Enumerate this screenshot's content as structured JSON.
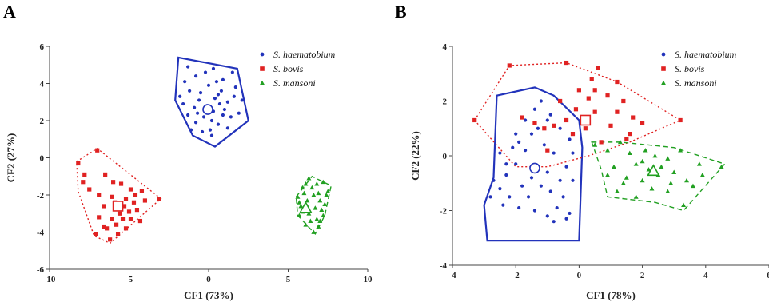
{
  "figure": {
    "panel_labels": [
      "A",
      "B"
    ]
  },
  "colors": {
    "s_haematobium": "#2233bb",
    "s_bovis": "#e02222",
    "s_mansoni": "#22a022"
  },
  "chart_data": [
    {
      "panel": "A",
      "type": "scatter",
      "xlabel": "CF1 (73%)",
      "ylabel": "CF2 (27%)",
      "xlim": [
        -10,
        10
      ],
      "ylim": [
        -6,
        6
      ],
      "xticks": [
        -10,
        -5,
        0,
        5,
        10
      ],
      "yticks": [
        -6,
        -4,
        -2,
        0,
        2,
        4,
        6
      ],
      "legend_position": "top-right",
      "series": [
        {
          "name": "S. haematobium",
          "marker": "circle",
          "hull_style": "solid",
          "hull": [
            [
              -1.9,
              5.4
            ],
            [
              1.8,
              4.8
            ],
            [
              2.5,
              2.0
            ],
            [
              0.4,
              0.6
            ],
            [
              -1.0,
              1.2
            ],
            [
              -2.1,
              3.1
            ]
          ],
          "centroid": [
            -0.05,
            2.6
          ],
          "points": [
            [
              -1.3,
              4.9
            ],
            [
              -0.8,
              4.4
            ],
            [
              -0.2,
              4.6
            ],
            [
              0.3,
              4.8
            ],
            [
              0.9,
              4.2
            ],
            [
              1.5,
              4.6
            ],
            [
              1.7,
              3.8
            ],
            [
              2.1,
              3.1
            ],
            [
              1.9,
              2.4
            ],
            [
              1.4,
              2.2
            ],
            [
              1.0,
              2.6
            ],
            [
              0.6,
              1.8
            ],
            [
              0.2,
              1.2
            ],
            [
              -0.4,
              1.4
            ],
            [
              -0.8,
              1.9
            ],
            [
              -1.3,
              2.3
            ],
            [
              -1.6,
              2.9
            ],
            [
              -1.8,
              3.3
            ],
            [
              -1.2,
              3.6
            ],
            [
              -0.6,
              3.1
            ],
            [
              -0.1,
              2.8
            ],
            [
              0.4,
              3.2
            ],
            [
              0.8,
              3.6
            ],
            [
              1.2,
              3.0
            ],
            [
              -0.9,
              2.7
            ],
            [
              -0.3,
              2.2
            ],
            [
              0.2,
              2.0
            ],
            [
              0.7,
              2.9
            ],
            [
              -1.5,
              4.1
            ],
            [
              0.0,
              3.9
            ],
            [
              0.5,
              4.1
            ],
            [
              1.2,
              1.6
            ],
            [
              -0.5,
              3.5
            ],
            [
              0.1,
              1.5
            ],
            [
              0.9,
              2.3
            ],
            [
              -1.1,
              1.5
            ],
            [
              1.6,
              3.3
            ],
            [
              0.3,
              2.5
            ],
            [
              -0.7,
              2.4
            ],
            [
              0.6,
              3.4
            ]
          ]
        },
        {
          "name": "S. bovis",
          "marker": "square",
          "hull_style": "dotted",
          "hull": [
            [
              -8.3,
              -0.2
            ],
            [
              -7.0,
              0.5
            ],
            [
              -3.0,
              -2.2
            ],
            [
              -6.2,
              -4.6
            ],
            [
              -7.2,
              -4.2
            ],
            [
              -8.2,
              -1.8
            ]
          ],
          "centroid": [
            -5.7,
            -2.6
          ],
          "points": [
            [
              -8.2,
              -0.3
            ],
            [
              -7.8,
              -0.9
            ],
            [
              -7.5,
              -1.7
            ],
            [
              -7.0,
              0.4
            ],
            [
              -6.5,
              -0.9
            ],
            [
              -6.9,
              -2.0
            ],
            [
              -6.6,
              -2.6
            ],
            [
              -6.9,
              -3.2
            ],
            [
              -6.6,
              -3.7
            ],
            [
              -7.1,
              -4.1
            ],
            [
              -6.2,
              -4.4
            ],
            [
              -5.7,
              -4.1
            ],
            [
              -5.2,
              -3.8
            ],
            [
              -4.9,
              -3.3
            ],
            [
              -4.5,
              -2.8
            ],
            [
              -4.0,
              -2.3
            ],
            [
              -3.1,
              -2.2
            ],
            [
              -4.2,
              -1.8
            ],
            [
              -4.9,
              -1.7
            ],
            [
              -5.5,
              -1.4
            ],
            [
              -6.0,
              -1.3
            ],
            [
              -6.1,
              -2.1
            ],
            [
              -5.2,
              -2.2
            ],
            [
              -5.6,
              -3.0
            ],
            [
              -6.1,
              -3.3
            ],
            [
              -4.7,
              -2.4
            ],
            [
              -5.0,
              -2.9
            ],
            [
              -5.8,
              -3.6
            ],
            [
              -6.4,
              -3.8
            ],
            [
              -4.3,
              -3.4
            ],
            [
              -5.4,
              -3.3
            ],
            [
              -7.9,
              -1.3
            ],
            [
              -4.6,
              -2.0
            ],
            [
              -5.9,
              -2.4
            ],
            [
              -5.3,
              -2.6
            ]
          ]
        },
        {
          "name": "S. mansoni",
          "marker": "triangle",
          "hull_style": "dashed",
          "hull": [
            [
              5.5,
              -2.1
            ],
            [
              6.5,
              -1.0
            ],
            [
              7.7,
              -1.5
            ],
            [
              7.3,
              -3.1
            ],
            [
              6.7,
              -4.1
            ],
            [
              5.6,
              -3.1
            ]
          ],
          "centroid": [
            6.1,
            -2.7
          ],
          "points": [
            [
              5.6,
              -2.1
            ],
            [
              5.9,
              -1.6
            ],
            [
              6.3,
              -1.1
            ],
            [
              6.8,
              -1.4
            ],
            [
              7.2,
              -1.3
            ],
            [
              7.5,
              -1.8
            ],
            [
              7.3,
              -2.5
            ],
            [
              7.2,
              -3.1
            ],
            [
              6.9,
              -3.7
            ],
            [
              6.6,
              -4.0
            ],
            [
              6.1,
              -3.6
            ],
            [
              5.7,
              -3.1
            ],
            [
              5.8,
              -2.6
            ],
            [
              6.2,
              -2.3
            ],
            [
              6.6,
              -2.0
            ],
            [
              7.0,
              -2.3
            ],
            [
              6.7,
              -2.7
            ],
            [
              6.3,
              -3.0
            ],
            [
              6.8,
              -3.3
            ],
            [
              6.0,
              -1.9
            ],
            [
              6.5,
              -1.6
            ],
            [
              7.4,
              -2.0
            ],
            [
              5.9,
              -2.9
            ],
            [
              6.4,
              -3.4
            ],
            [
              7.1,
              -2.8
            ],
            [
              6.2,
              -2.6
            ],
            [
              6.9,
              -1.9
            ],
            [
              7.0,
              -3.4
            ],
            [
              6.1,
              -1.4
            ],
            [
              5.7,
              -2.4
            ]
          ]
        }
      ]
    },
    {
      "panel": "B",
      "type": "scatter",
      "xlabel": "CF1 (78%)",
      "ylabel": "CF2 (22%)",
      "xlim": [
        -4,
        6
      ],
      "ylim": [
        -4,
        4
      ],
      "xticks": [
        -4,
        -2,
        0,
        2,
        4,
        6
      ],
      "yticks": [
        -4,
        -2,
        0,
        2,
        4
      ],
      "legend_position": "top-right",
      "series": [
        {
          "name": "S. haematobium",
          "marker": "circle",
          "hull_style": "solid",
          "hull": [
            [
              -2.6,
              2.2
            ],
            [
              -1.4,
              2.5
            ],
            [
              -0.8,
              2.2
            ],
            [
              0.0,
              1.3
            ],
            [
              0.1,
              0.3
            ],
            [
              0.0,
              -3.1
            ],
            [
              -2.9,
              -3.1
            ],
            [
              -3.0,
              -1.8
            ],
            [
              -2.7,
              -0.8
            ]
          ],
          "centroid": [
            -1.4,
            -0.45
          ],
          "points": [
            [
              -2.7,
              -0.9
            ],
            [
              -2.8,
              -1.5
            ],
            [
              -2.3,
              -0.3
            ],
            [
              -2.0,
              0.8
            ],
            [
              -1.7,
              1.3
            ],
            [
              -1.4,
              1.7
            ],
            [
              -1.2,
              2.0
            ],
            [
              -0.9,
              1.5
            ],
            [
              -0.6,
              1.0
            ],
            [
              -0.3,
              0.6
            ],
            [
              -0.2,
              0.1
            ],
            [
              -0.4,
              -0.4
            ],
            [
              -0.6,
              -0.9
            ],
            [
              -0.9,
              -1.3
            ],
            [
              -0.7,
              -1.9
            ],
            [
              -0.4,
              -2.3
            ],
            [
              -0.3,
              -2.1
            ],
            [
              -1.0,
              -2.2
            ],
            [
              -1.4,
              -2.0
            ],
            [
              -1.9,
              -1.9
            ],
            [
              -2.2,
              -1.5
            ],
            [
              -2.5,
              -1.2
            ],
            [
              -2.3,
              -0.7
            ],
            [
              -2.0,
              -0.3
            ],
            [
              -1.7,
              0.2
            ],
            [
              -1.5,
              -0.8
            ],
            [
              -1.2,
              -1.1
            ],
            [
              -1.0,
              -0.6
            ],
            [
              -1.8,
              -1.1
            ],
            [
              -2.1,
              0.3
            ],
            [
              -1.5,
              0.8
            ],
            [
              -1.1,
              0.4
            ],
            [
              -0.8,
              0.1
            ],
            [
              -0.5,
              -1.5
            ],
            [
              -1.6,
              -1.5
            ],
            [
              -2.5,
              0.1
            ],
            [
              -0.2,
              -0.9
            ],
            [
              -1.3,
              1.0
            ],
            [
              -2.4,
              -1.8
            ],
            [
              -0.8,
              -2.4
            ],
            [
              -1.0,
              1.3
            ],
            [
              -1.9,
              0.5
            ]
          ]
        },
        {
          "name": "S. bovis",
          "marker": "square",
          "hull_style": "dotted",
          "hull": [
            [
              -3.3,
              1.3
            ],
            [
              -2.2,
              3.3
            ],
            [
              -0.4,
              3.4
            ],
            [
              1.2,
              2.7
            ],
            [
              3.2,
              1.3
            ],
            [
              1.6,
              0.5
            ],
            [
              0.3,
              0.0
            ],
            [
              -1.0,
              -0.4
            ],
            [
              -2.0,
              -0.4
            ]
          ],
          "centroid": [
            0.2,
            1.3
          ],
          "points": [
            [
              -3.3,
              1.3
            ],
            [
              -2.2,
              3.3
            ],
            [
              -0.4,
              3.4
            ],
            [
              0.6,
              3.2
            ],
            [
              1.2,
              2.7
            ],
            [
              1.4,
              2.0
            ],
            [
              1.7,
              1.4
            ],
            [
              2.0,
              1.2
            ],
            [
              3.2,
              1.3
            ],
            [
              1.5,
              0.6
            ],
            [
              1.0,
              1.1
            ],
            [
              0.5,
              1.6
            ],
            [
              0.3,
              2.1
            ],
            [
              -0.1,
              1.7
            ],
            [
              -0.4,
              1.3
            ],
            [
              -0.8,
              1.1
            ],
            [
              -1.1,
              1.0
            ],
            [
              -1.4,
              1.2
            ],
            [
              0.0,
              2.4
            ],
            [
              0.5,
              2.4
            ],
            [
              0.9,
              2.2
            ],
            [
              0.7,
              0.5
            ],
            [
              -0.2,
              0.8
            ],
            [
              0.2,
              1.0
            ],
            [
              1.2,
              1.6
            ],
            [
              -1.8,
              1.4
            ],
            [
              -0.6,
              2.0
            ],
            [
              1.6,
              0.8
            ],
            [
              0.4,
              2.8
            ],
            [
              -1.0,
              0.2
            ]
          ]
        },
        {
          "name": "S. mansoni",
          "marker": "triangle",
          "hull_style": "dashed",
          "hull": [
            [
              0.4,
              0.5
            ],
            [
              1.3,
              0.5
            ],
            [
              3.0,
              0.3
            ],
            [
              4.6,
              -0.3
            ],
            [
              3.3,
              -2.0
            ],
            [
              2.4,
              -1.7
            ],
            [
              0.9,
              -1.5
            ],
            [
              0.7,
              -0.5
            ]
          ],
          "centroid": [
            2.35,
            -0.55
          ],
          "points": [
            [
              0.5,
              0.4
            ],
            [
              0.9,
              0.2
            ],
            [
              1.3,
              0.5
            ],
            [
              1.6,
              0.1
            ],
            [
              2.0,
              -0.2
            ],
            [
              2.4,
              0.0
            ],
            [
              2.8,
              -0.1
            ],
            [
              3.2,
              0.2
            ],
            [
              3.8,
              -0.3
            ],
            [
              4.5,
              -0.4
            ],
            [
              3.6,
              -1.1
            ],
            [
              3.3,
              -1.8
            ],
            [
              2.8,
              -1.3
            ],
            [
              2.3,
              -1.2
            ],
            [
              1.8,
              -1.5
            ],
            [
              1.2,
              -1.3
            ],
            [
              0.9,
              -0.7
            ],
            [
              1.1,
              -0.4
            ],
            [
              1.5,
              -0.8
            ],
            [
              2.0,
              -0.9
            ],
            [
              2.5,
              -0.7
            ],
            [
              3.0,
              -0.6
            ],
            [
              3.4,
              -0.9
            ],
            [
              2.6,
              -0.4
            ],
            [
              1.8,
              -0.3
            ],
            [
              2.2,
              -0.5
            ],
            [
              3.9,
              -0.7
            ],
            [
              2.9,
              -1.0
            ],
            [
              1.4,
              -1.0
            ],
            [
              2.1,
              0.2
            ]
          ]
        }
      ]
    }
  ]
}
